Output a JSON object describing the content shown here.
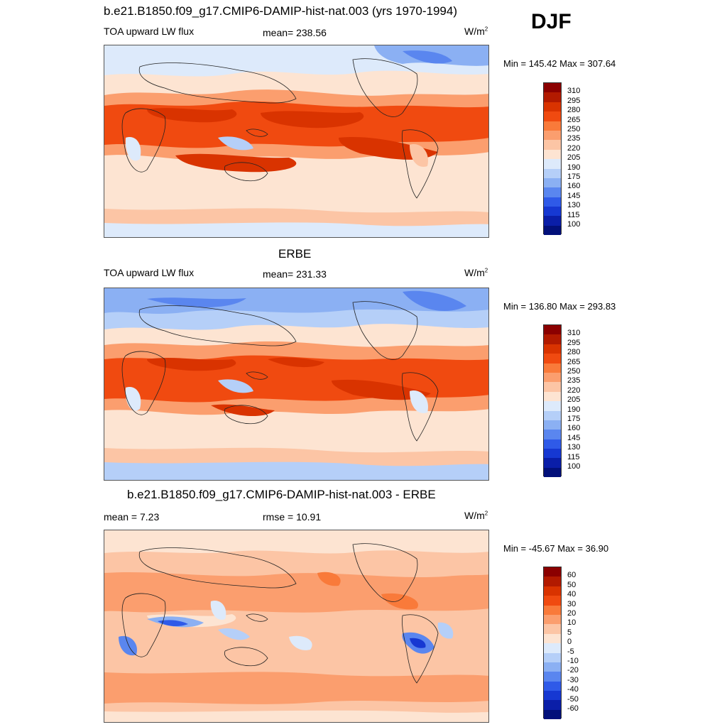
{
  "season": "DJF",
  "panels": [
    {
      "title": "b.e21.B1850.f09_g17.CMIP6-DAMIP-hist-nat.003 (yrs 1970-1994)",
      "left_label": "TOA upward LW flux",
      "center_label": "mean= 238.56",
      "units": "W/m",
      "units_sup": "2",
      "minmax": "Min = 145.42 Max = 307.64"
    },
    {
      "title": "ERBE",
      "left_label": "TOA upward LW flux",
      "center_label": "mean= 231.33",
      "units": "W/m",
      "units_sup": "2",
      "minmax": "Min = 136.80 Max = 293.83"
    },
    {
      "title": "b.e21.B1850.f09_g17.CMIP6-DAMIP-hist-nat.003 - ERBE",
      "left_label": "mean =   7.23",
      "center_label": "rmse =  10.91",
      "units": "W/m",
      "units_sup": "2",
      "minmax": "Min = -45.67 Max =  36.90"
    }
  ],
  "colorbars": {
    "abs_labels": [
      "310",
      "295",
      "280",
      "265",
      "250",
      "235",
      "220",
      "205",
      "190",
      "175",
      "160",
      "145",
      "130",
      "115",
      "100"
    ],
    "diff_labels": [
      "60",
      "50",
      "40",
      "30",
      "20",
      "10",
      "5",
      "0",
      "-5",
      "-10",
      "-20",
      "-30",
      "-40",
      "-50",
      "-60"
    ],
    "colors": [
      "#8b0000",
      "#b21a00",
      "#d93300",
      "#f04a10",
      "#f97a3a",
      "#fb9e6e",
      "#fcc5a5",
      "#fde4d2",
      "#ddeafb",
      "#b5cff8",
      "#8bb0f3",
      "#5a86ef",
      "#2f5ae8",
      "#1638d2",
      "#0a1ea8",
      "#02107a"
    ]
  }
}
